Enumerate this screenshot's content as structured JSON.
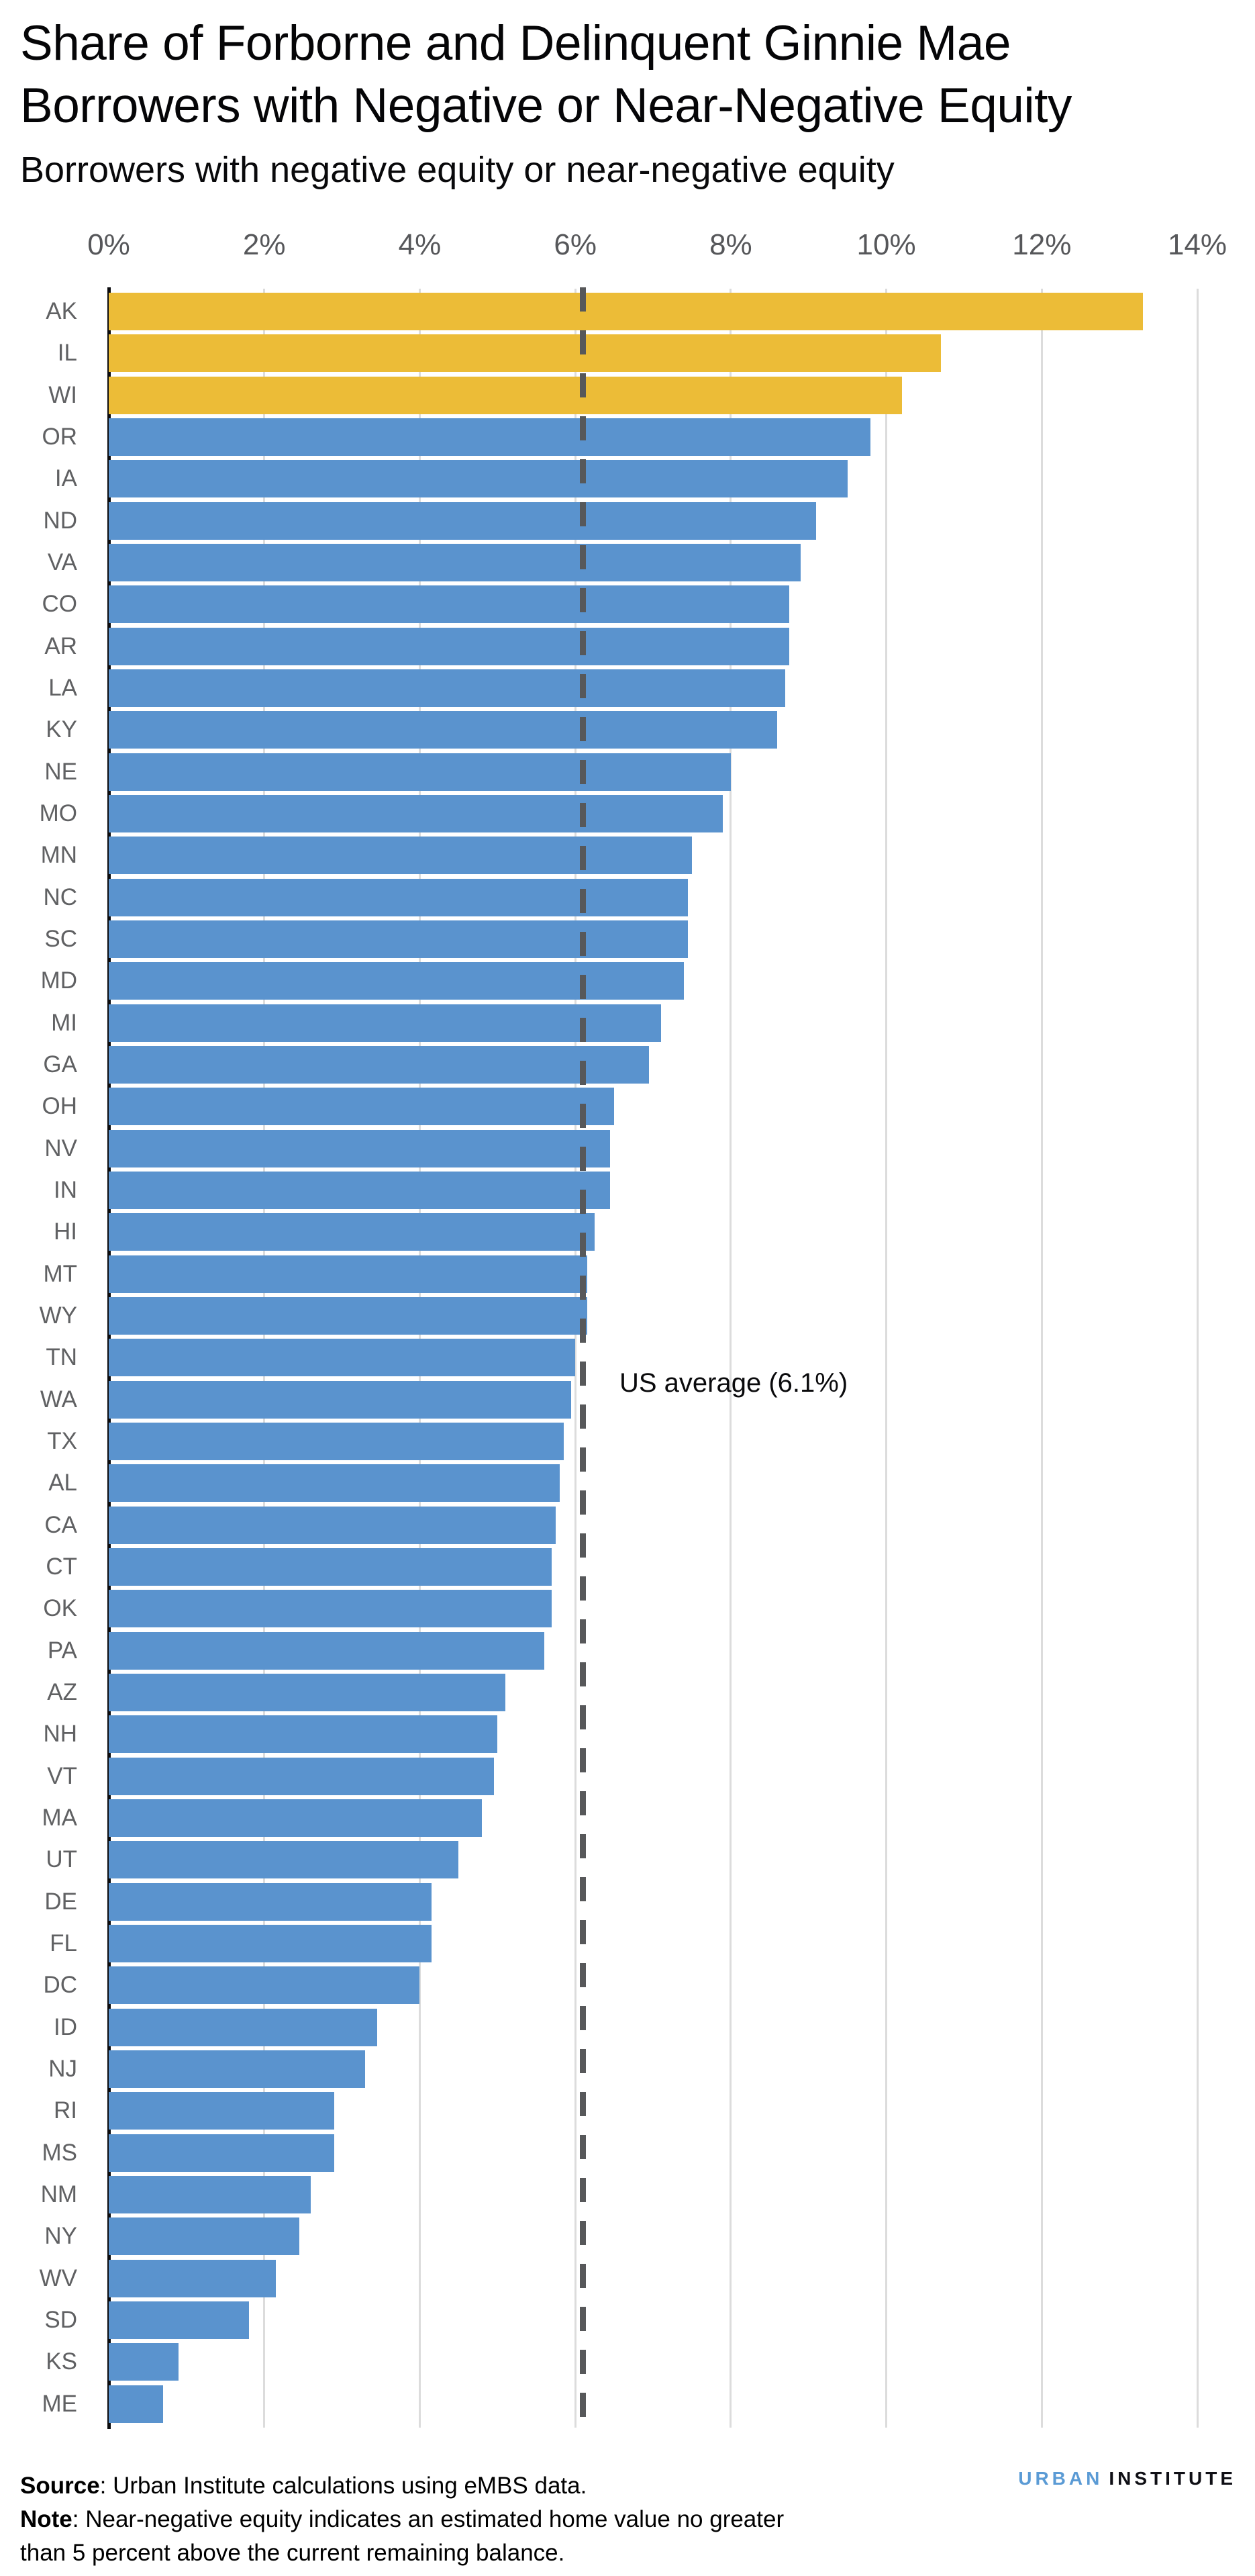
{
  "header": {
    "title_line1": "Share of Forborne and Delinquent Ginnie Mae",
    "title_line2": "Borrowers with Negative or Near-Negative Equity",
    "subtitle": "Borrowers with negative equity or near-negative equity"
  },
  "chart_data": {
    "type": "bar",
    "orientation": "horizontal",
    "title": "Share of Forborne and Delinquent Ginnie Mae Borrowers with Negative or Near-Negative Equity",
    "subtitle": "Borrowers with negative equity or near-negative equity",
    "xlabel": "",
    "ylabel": "",
    "xlim": [
      0,
      14
    ],
    "x_ticks": [
      "0%",
      "2%",
      "4%",
      "6%",
      "8%",
      "10%",
      "12%",
      "14%"
    ],
    "grid": true,
    "categories": [
      "AK",
      "IL",
      "WI",
      "OR",
      "IA",
      "ND",
      "VA",
      "CO",
      "AR",
      "LA",
      "KY",
      "NE",
      "MO",
      "MN",
      "NC",
      "SC",
      "MD",
      "MI",
      "GA",
      "OH",
      "NV",
      "IN",
      "HI",
      "MT",
      "WY",
      "TN",
      "WA",
      "TX",
      "AL",
      "CA",
      "CT",
      "OK",
      "PA",
      "AZ",
      "NH",
      "VT",
      "MA",
      "UT",
      "DE",
      "FL",
      "DC",
      "ID",
      "NJ",
      "RI",
      "MS",
      "NM",
      "NY",
      "WV",
      "SD",
      "KS",
      "ME"
    ],
    "values": [
      13.3,
      10.7,
      10.2,
      9.8,
      9.5,
      9.1,
      8.9,
      8.75,
      8.75,
      8.7,
      8.6,
      8.0,
      7.9,
      7.5,
      7.45,
      7.45,
      7.4,
      7.1,
      6.95,
      6.5,
      6.45,
      6.45,
      6.25,
      6.15,
      6.15,
      6.0,
      5.95,
      5.85,
      5.8,
      5.75,
      5.7,
      5.7,
      5.6,
      5.1,
      5.0,
      4.95,
      4.8,
      4.5,
      4.15,
      4.15,
      4.0,
      3.45,
      3.3,
      2.9,
      2.9,
      2.6,
      2.45,
      2.15,
      1.8,
      0.9,
      0.7
    ],
    "highlighted_categories": [
      "AK",
      "IL",
      "WI"
    ],
    "us_average": 6.1,
    "annotation": "US average (6.1%)",
    "legend_position": "none",
    "colors": {
      "bar": "#5a93ce",
      "highlight": "#ecbc37",
      "reference_line": "#57585a",
      "gridline": "#dcdcdc",
      "axis": "#0b0b0d",
      "tick_label": "#56575a",
      "category_label": "#606163"
    }
  },
  "footer": {
    "source_label": "Source",
    "source_rest": ": Urban Institute calculations using eMBS data.",
    "note_label": "Note",
    "note_rest": ": Near-negative equity indicates an estimated home value no greater",
    "note_line2": "than 5 percent above the current remaining balance.",
    "logo": {
      "word1": "URBAN",
      "word2": "INSTITUTE",
      "word1_color": "#5b9bd5",
      "word2_color": "#0f0f15"
    }
  }
}
